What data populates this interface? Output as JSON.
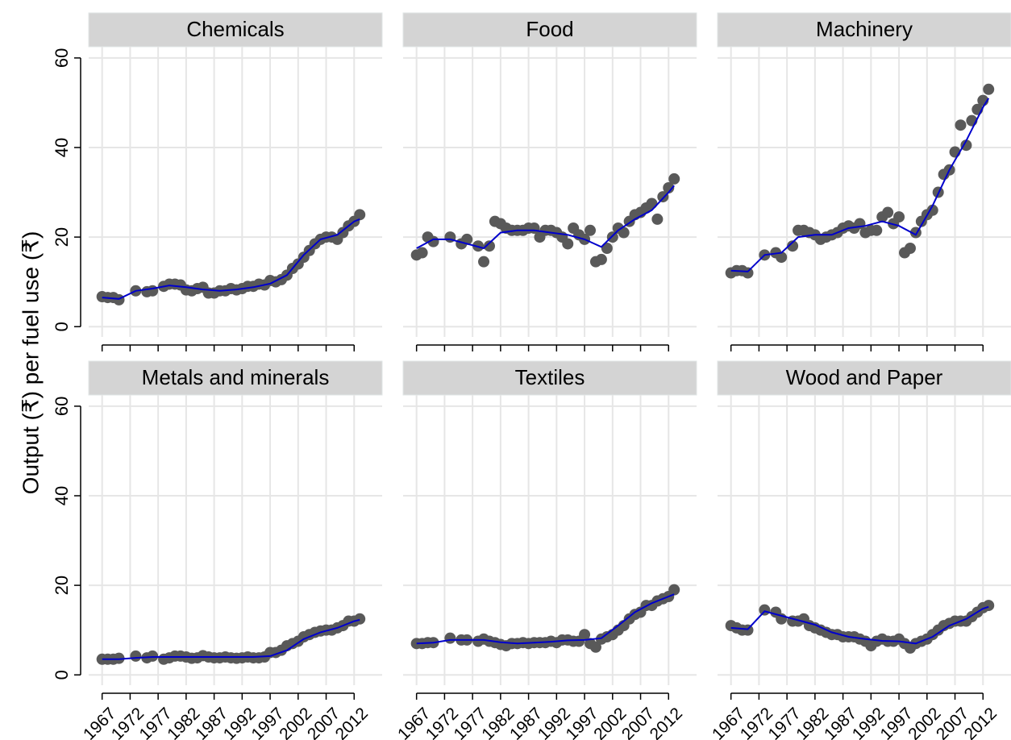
{
  "chart_data": {
    "type": "scatter",
    "ylabel": "Output (₹) per fuel use (₹)",
    "x": [
      1967,
      1968,
      1969,
      1970,
      1973,
      1975,
      1976,
      1978,
      1979,
      1980,
      1981,
      1982,
      1983,
      1984,
      1985,
      1986,
      1987,
      1988,
      1989,
      1990,
      1991,
      1992,
      1993,
      1994,
      1995,
      1996,
      1997,
      1998,
      1999,
      2000,
      2001,
      2002,
      2003,
      2004,
      2005,
      2006,
      2007,
      2008,
      2009,
      2010,
      2011,
      2012,
      2013
    ],
    "fit_x": [
      1967,
      1970,
      1973,
      1976,
      1979,
      1982,
      1985,
      1988,
      1991,
      1994,
      1997,
      2000,
      2003,
      2006,
      2009,
      2012,
      2013
    ],
    "xlim": [
      1964.6,
      2017
    ],
    "ylim": [
      -2.3,
      62.5
    ],
    "xticks": [
      1967,
      1972,
      1977,
      1982,
      1987,
      1992,
      1997,
      2002,
      2007,
      2012
    ],
    "yticks": [
      0,
      20,
      40,
      60
    ],
    "grid": true,
    "point_color": "#595959",
    "line_color": "#0000cc",
    "panels": [
      {
        "title": "Chemicals",
        "values": [
          6.7,
          6.5,
          6.5,
          6.0,
          8.0,
          7.8,
          8.0,
          9.0,
          9.5,
          9.5,
          9.3,
          8.2,
          8.0,
          8.5,
          8.8,
          7.5,
          7.5,
          8.0,
          8.0,
          8.5,
          8.2,
          8.5,
          9.0,
          9.0,
          9.5,
          9.3,
          10.3,
          10.0,
          10.5,
          11.5,
          13,
          14,
          15.5,
          17,
          18.5,
          19.5,
          20,
          20,
          19.5,
          21,
          22.5,
          23.5,
          25
        ],
        "fit": [
          6.5,
          6.2,
          8,
          8.5,
          9.2,
          8.8,
          8.3,
          8.0,
          8.3,
          8.8,
          9.6,
          11.5,
          16,
          19.5,
          20.5,
          23.5,
          24
        ]
      },
      {
        "title": "Food",
        "values": [
          16,
          16.5,
          20,
          19,
          20,
          18.5,
          19.5,
          18,
          14.5,
          18,
          23.5,
          23,
          22,
          21.5,
          21.5,
          21.5,
          22,
          22,
          20,
          21.5,
          21.5,
          21,
          20,
          18.5,
          22,
          20.5,
          19.5,
          21.5,
          14.5,
          15,
          17.5,
          20,
          22,
          21,
          23.5,
          25,
          25.5,
          26.5,
          27.5,
          24,
          29,
          31,
          33
        ],
        "fit": [
          17.5,
          19.5,
          19.5,
          18.5,
          17.5,
          21,
          21.5,
          21.5,
          21,
          20.5,
          19.5,
          17.8,
          21.5,
          24,
          26,
          30,
          31.5
        ]
      },
      {
        "title": "Machinery",
        "values": [
          12,
          12.5,
          12.5,
          12,
          16,
          16.5,
          15.5,
          18,
          21.5,
          21.5,
          21,
          20.5,
          19.5,
          20,
          20.5,
          21,
          22,
          22.5,
          22,
          23,
          21,
          21.5,
          21.5,
          24.5,
          25.5,
          23,
          24.5,
          16.5,
          17.5,
          21,
          23.5,
          25,
          26,
          30,
          34,
          35,
          39,
          45,
          40.5,
          46,
          48.5,
          50.5,
          53
        ],
        "fit": [
          12.5,
          12.3,
          16,
          16.5,
          20,
          20.5,
          20.5,
          22,
          22.5,
          23.5,
          22.5,
          20.5,
          27,
          35,
          41.5,
          49,
          51
        ]
      },
      {
        "title": "Metals and minerals",
        "values": [
          3.5,
          3.5,
          3.5,
          3.7,
          4.2,
          3.8,
          4.2,
          3.5,
          3.8,
          4.2,
          4.2,
          4,
          3.7,
          3.8,
          4.3,
          4,
          3.8,
          3.8,
          4,
          3.8,
          3.7,
          3.8,
          4,
          3.8,
          3.8,
          4,
          5,
          5,
          5.5,
          6.5,
          7,
          7.5,
          8.5,
          9,
          9.5,
          9.8,
          10,
          10,
          10.5,
          11,
          12,
          12,
          12.5
        ],
        "fit": [
          3.5,
          3.5,
          3.8,
          4,
          4,
          4,
          4,
          4,
          4,
          4,
          4.2,
          5.5,
          8,
          9.5,
          10.5,
          12,
          12.3
        ]
      },
      {
        "title": "Textiles",
        "values": [
          7,
          7,
          7.2,
          7.2,
          8.2,
          7.8,
          7.8,
          7.5,
          8,
          7.5,
          7.2,
          6.8,
          6.5,
          7,
          7,
          7.2,
          7,
          7.2,
          7.2,
          7.2,
          7.5,
          7.2,
          7.8,
          7.8,
          7.5,
          7.5,
          9,
          7,
          6.2,
          8,
          8.5,
          9,
          10,
          11,
          12.5,
          13.5,
          14,
          15.5,
          15.5,
          16.5,
          17,
          17.5,
          19
        ],
        "fit": [
          7,
          7.2,
          7.8,
          7.8,
          7.8,
          7.3,
          7,
          7.2,
          7.4,
          7.7,
          7.8,
          8.2,
          11,
          14,
          16,
          17.5,
          18
        ]
      },
      {
        "title": "Wood and Paper",
        "values": [
          11,
          10.5,
          10,
          10,
          14.5,
          14,
          12.5,
          12,
          12,
          12.5,
          11,
          10.5,
          10,
          9.5,
          9,
          9,
          8.5,
          8.5,
          8.5,
          8,
          7.5,
          6.5,
          7.5,
          8,
          7.5,
          7.5,
          8,
          7,
          6,
          7,
          7.5,
          8,
          9,
          10,
          11,
          11.5,
          12,
          12,
          12,
          13,
          14,
          15,
          15.5
        ],
        "fit": [
          10.5,
          10.2,
          14.2,
          13.2,
          12.2,
          11.2,
          9.5,
          8.5,
          8,
          7.6,
          7.5,
          7,
          8.5,
          11,
          12.5,
          14.8,
          15.2
        ]
      }
    ]
  }
}
